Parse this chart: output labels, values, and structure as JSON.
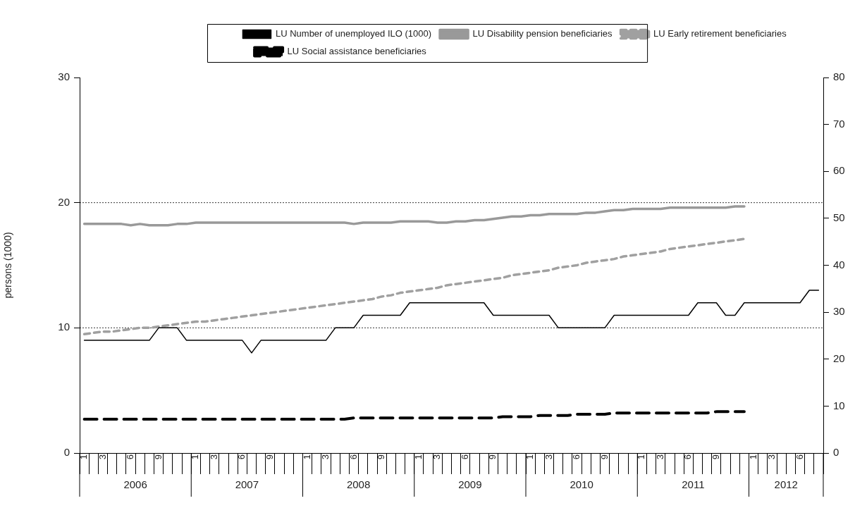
{
  "chart_data": {
    "type": "line",
    "ylabel": "persons (1000)",
    "categories": [
      "1",
      null,
      "3",
      null,
      null,
      "6",
      null,
      null,
      "9",
      null,
      null,
      null,
      "1",
      null,
      "3",
      null,
      null,
      "6",
      null,
      null,
      "9",
      null,
      null,
      null,
      "1",
      null,
      "3",
      null,
      null,
      "6",
      null,
      null,
      "9",
      null,
      null,
      null,
      "1",
      null,
      "3",
      null,
      null,
      "6",
      null,
      null,
      "9",
      null,
      null,
      null,
      "1",
      null,
      "3",
      null,
      null,
      "6",
      null,
      null,
      "9",
      null,
      null,
      null,
      "1",
      null,
      "3",
      null,
      null,
      "6",
      null,
      null,
      "9",
      null,
      null,
      null,
      "1",
      null,
      "3",
      null,
      null,
      "6",
      null,
      null
    ],
    "annotations": [
      "2006",
      "2007",
      "2008",
      "2009",
      "2010",
      "2011",
      "2012"
    ],
    "series": [
      {
        "name": "LU Number of unemployed ILO (1000)",
        "color": "#000000",
        "line_style": "solid",
        "values": [
          9,
          9,
          9,
          9,
          9,
          9,
          9,
          9,
          10,
          10,
          10,
          9,
          9,
          9,
          9,
          9,
          9,
          9,
          8,
          9,
          9,
          9,
          9,
          9,
          9,
          9,
          9,
          10,
          10,
          10,
          11,
          11,
          11,
          11,
          11,
          12,
          12,
          12,
          12,
          12,
          12,
          12,
          12,
          12,
          11,
          11,
          11,
          11,
          11,
          11,
          11,
          10,
          10,
          10,
          10,
          10,
          10,
          11,
          11,
          11,
          11,
          11,
          11,
          11,
          11,
          11,
          12,
          12,
          12,
          11,
          11,
          12,
          12,
          12,
          12,
          12,
          12,
          12,
          13,
          13
        ]
      },
      {
        "name": "LU Disability pension beneficiaries",
        "color": "#999999",
        "line_style": "solid",
        "values": [
          18.3,
          18.3,
          18.3,
          18.3,
          18.3,
          18.2,
          18.3,
          18.2,
          18.2,
          18.2,
          18.3,
          18.3,
          18.4,
          18.4,
          18.4,
          18.4,
          18.4,
          18.4,
          18.4,
          18.4,
          18.4,
          18.4,
          18.4,
          18.4,
          18.4,
          18.4,
          18.4,
          18.4,
          18.4,
          18.3,
          18.4,
          18.4,
          18.4,
          18.4,
          18.5,
          18.5,
          18.5,
          18.5,
          18.4,
          18.4,
          18.5,
          18.5,
          18.6,
          18.6,
          18.7,
          18.8,
          18.9,
          18.9,
          19.0,
          19.0,
          19.1,
          19.1,
          19.1,
          19.1,
          19.2,
          19.2,
          19.3,
          19.4,
          19.4,
          19.5,
          19.5,
          19.5,
          19.5,
          19.6,
          19.6,
          19.6,
          19.6,
          19.6,
          19.6,
          19.6,
          19.7,
          19.7,
          null,
          null,
          null,
          null,
          null,
          null,
          null,
          null
        ]
      },
      {
        "name": "LU Early retirement beneficiaries",
        "color": "#a0a0a0",
        "line_style": "dashed",
        "values": [
          9.5,
          9.6,
          9.7,
          9.7,
          9.8,
          9.9,
          10.0,
          10.0,
          10.1,
          10.2,
          10.3,
          10.4,
          10.5,
          10.5,
          10.6,
          10.7,
          10.8,
          10.9,
          11.0,
          11.1,
          11.2,
          11.3,
          11.4,
          11.5,
          11.6,
          11.7,
          11.8,
          11.9,
          12.0,
          12.1,
          12.2,
          12.3,
          12.5,
          12.6,
          12.8,
          12.9,
          13.0,
          13.1,
          13.2,
          13.4,
          13.5,
          13.6,
          13.7,
          13.8,
          13.9,
          14.0,
          14.2,
          14.3,
          14.4,
          14.5,
          14.6,
          14.8,
          14.9,
          15.0,
          15.2,
          15.3,
          15.4,
          15.5,
          15.7,
          15.8,
          15.9,
          16.0,
          16.1,
          16.3,
          16.4,
          16.5,
          16.6,
          16.7,
          16.8,
          16.9,
          17.0,
          17.1,
          null,
          null,
          null,
          null,
          null,
          null,
          null,
          null
        ]
      },
      {
        "name": "LU Social assistance beneficiaries",
        "color": "#000000",
        "line_style": "dashed",
        "values": [
          2.7,
          2.7,
          2.7,
          2.7,
          2.7,
          2.7,
          2.7,
          2.7,
          2.7,
          2.7,
          2.7,
          2.7,
          2.7,
          2.7,
          2.7,
          2.7,
          2.7,
          2.7,
          2.7,
          2.7,
          2.7,
          2.7,
          2.7,
          2.7,
          2.7,
          2.7,
          2.7,
          2.7,
          2.7,
          2.8,
          2.8,
          2.8,
          2.8,
          2.8,
          2.8,
          2.8,
          2.8,
          2.8,
          2.8,
          2.8,
          2.8,
          2.8,
          2.8,
          2.8,
          2.8,
          2.9,
          2.9,
          2.9,
          2.9,
          3.0,
          3.0,
          3.0,
          3.0,
          3.1,
          3.1,
          3.1,
          3.1,
          3.2,
          3.2,
          3.2,
          3.2,
          3.2,
          3.2,
          3.2,
          3.2,
          3.2,
          3.2,
          3.2,
          3.3,
          3.3,
          3.3,
          3.3,
          null,
          null,
          null,
          null,
          null,
          null,
          null,
          null
        ]
      }
    ],
    "ylim": [
      0,
      30
    ],
    "yticks": [
      0,
      10,
      20,
      30
    ],
    "y2lim": [
      0,
      80
    ],
    "y2ticks": [
      0,
      10,
      20,
      30,
      40,
      50,
      60,
      70,
      80
    ],
    "grid": "y",
    "legend": "top",
    "marker": "none"
  }
}
